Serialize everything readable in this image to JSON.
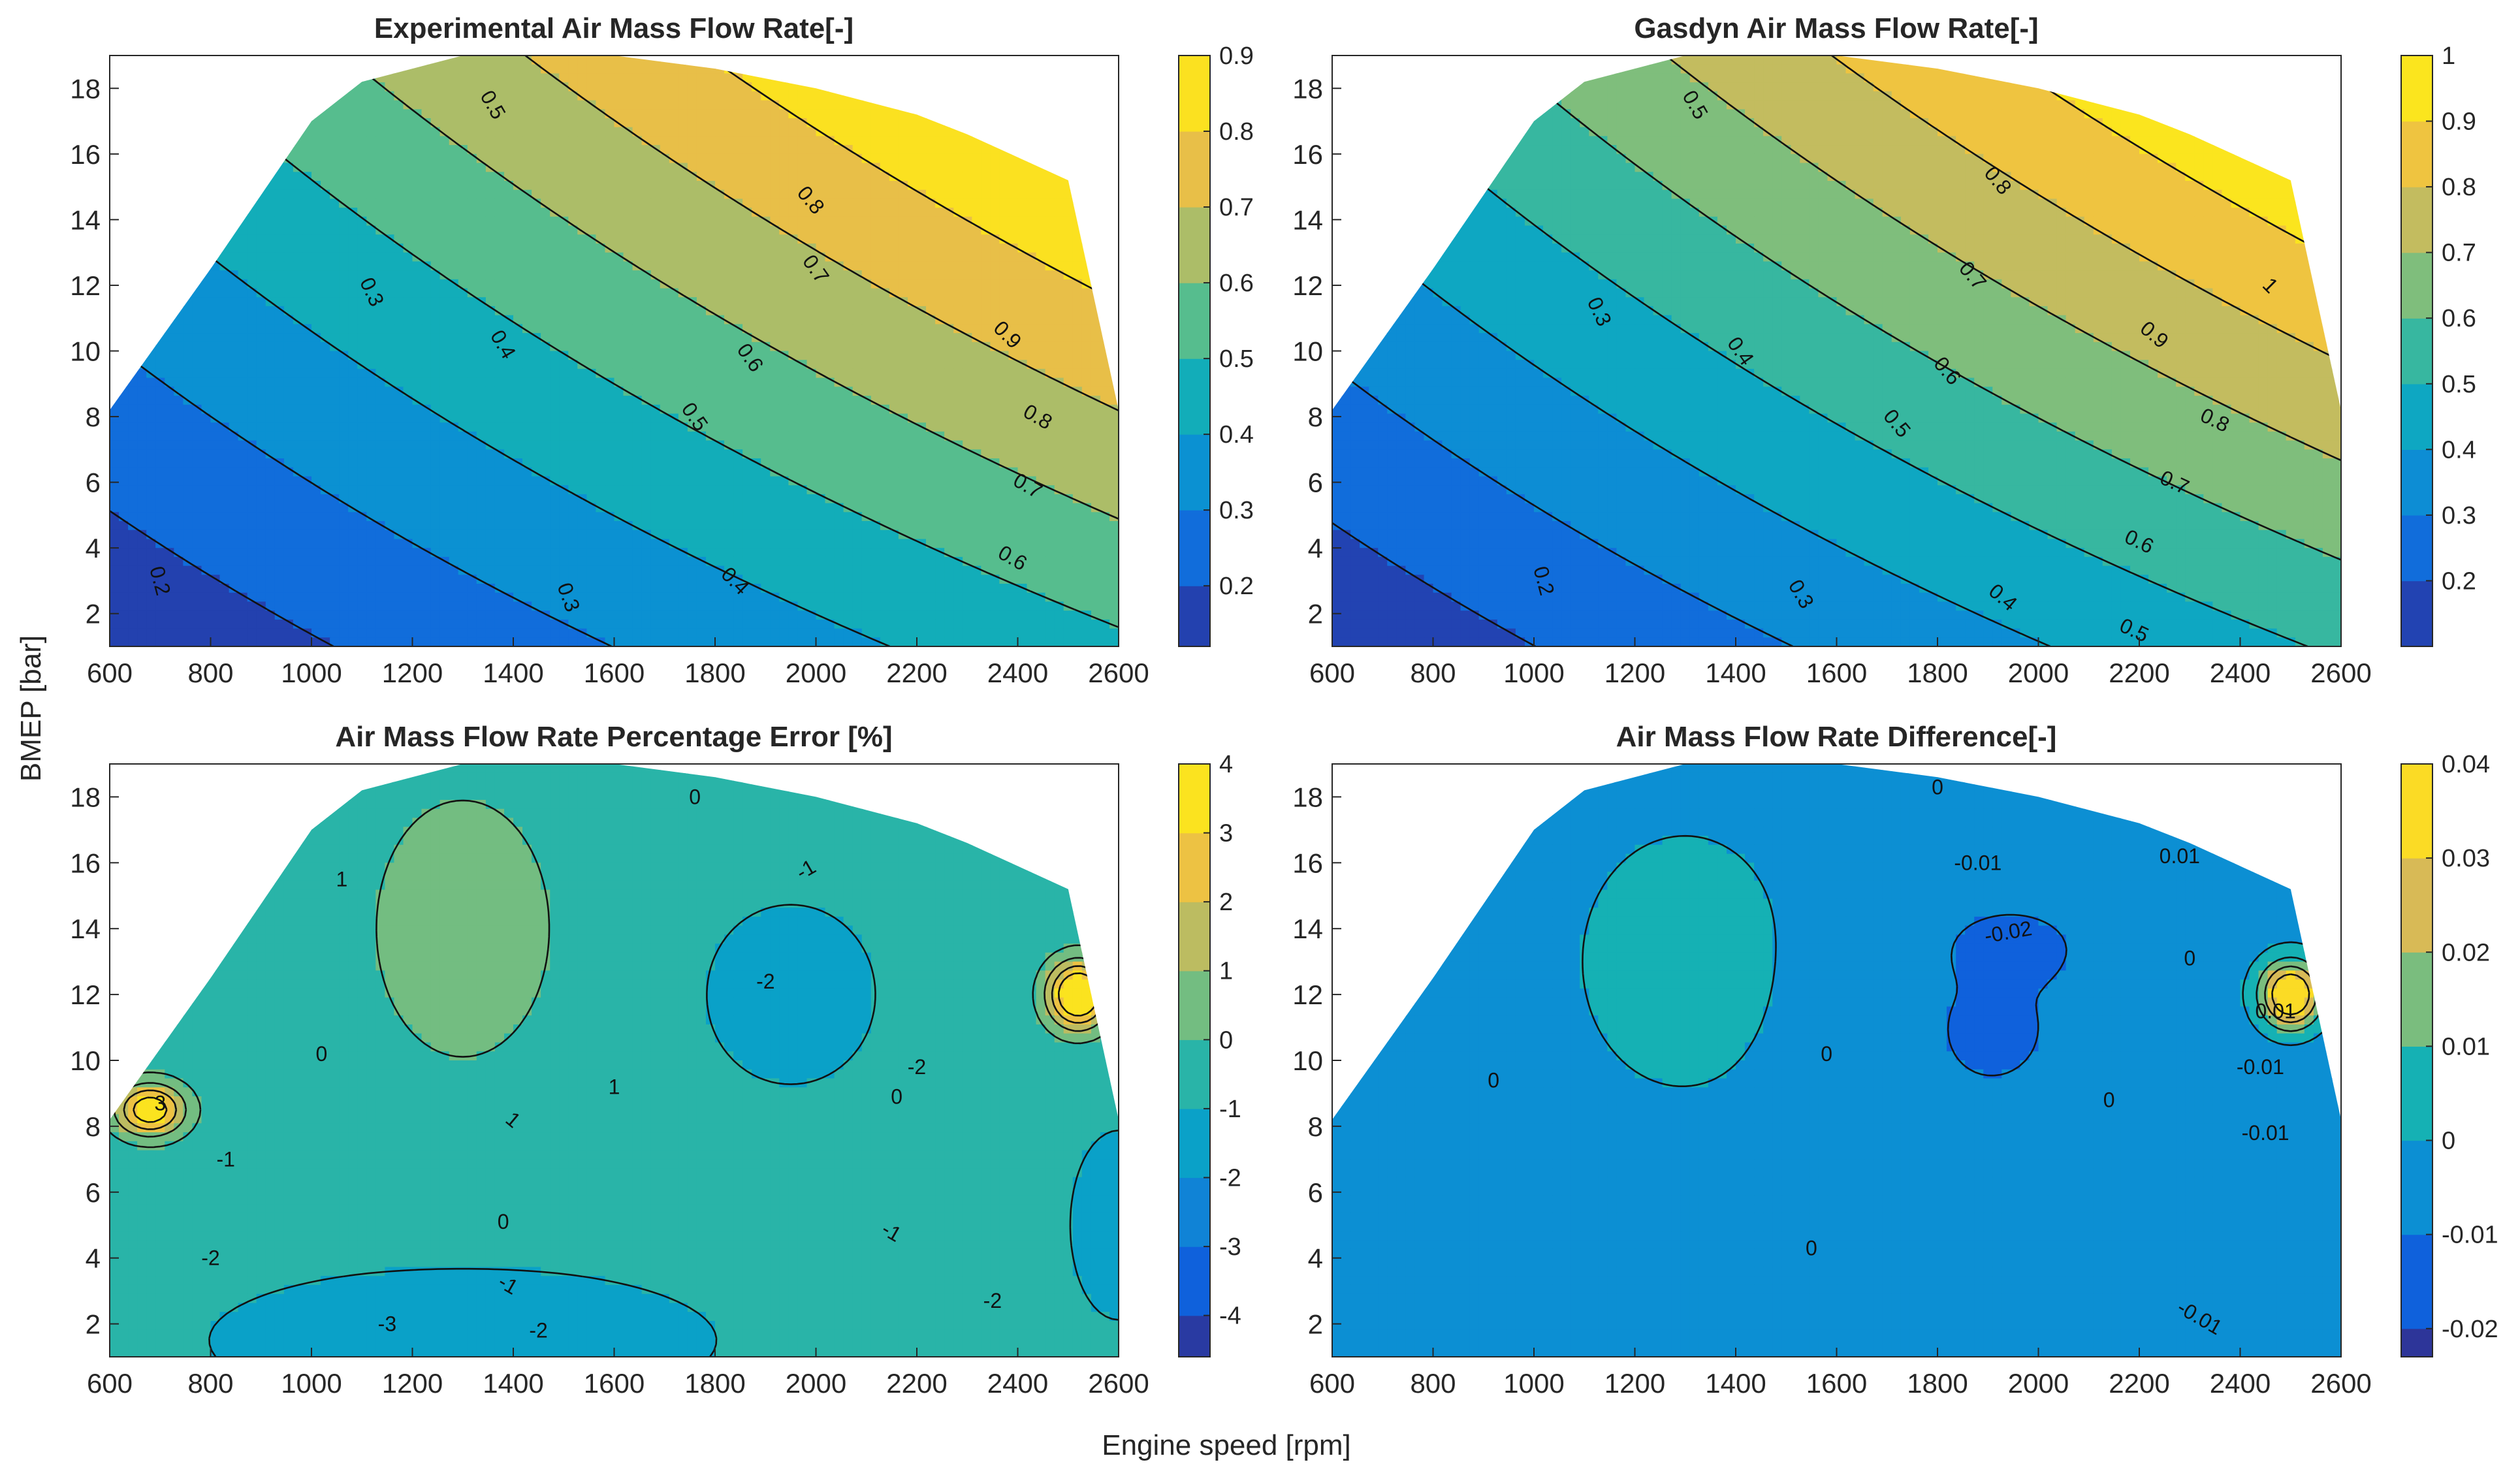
{
  "figure": {
    "shared_xlabel": "Engine speed [rpm]",
    "shared_ylabel": "BMEP [bar]"
  },
  "chart_data": [
    {
      "type": "contour",
      "title": "Experimental Air Mass Flow Rate[-]",
      "xlabel": "Engine speed [rpm]",
      "ylabel": "BMEP [bar]",
      "xlim": [
        600,
        2600
      ],
      "ylim": [
        1,
        19
      ],
      "xticks": [
        600,
        800,
        1000,
        1200,
        1400,
        1600,
        1800,
        2000,
        2200,
        2400,
        2600
      ],
      "yticks": [
        2,
        4,
        6,
        8,
        10,
        12,
        14,
        16,
        18
      ],
      "boundary": [
        [
          600,
          8.2
        ],
        [
          800,
          12.5
        ],
        [
          1000,
          17.0
        ],
        [
          1100,
          18.2
        ],
        [
          1300,
          19.0
        ],
        [
          1600,
          19.0
        ],
        [
          1800,
          18.6
        ],
        [
          2000,
          18.0
        ],
        [
          2200,
          17.2
        ],
        [
          2300,
          16.6
        ],
        [
          2500,
          15.2
        ],
        [
          2520,
          13.8
        ],
        [
          2600,
          8.2
        ],
        [
          2600,
          1
        ],
        [
          600,
          1
        ]
      ],
      "field": {
        "base": 0.1,
        "a": 0.000176,
        "b": 0.0195,
        "c": 5.4e-06
      },
      "colorbar": {
        "min": 0.12,
        "max": 0.9,
        "ticks": [
          0.2,
          0.3,
          0.4,
          0.5,
          0.6,
          0.7,
          0.8,
          0.9
        ]
      },
      "levels": [
        0.2,
        0.3,
        0.4,
        0.5,
        0.6,
        0.7,
        0.8,
        0.9
      ],
      "contour_labels": [
        {
          "text": "0.2",
          "x": 700,
          "y": 3.0,
          "rot": 75
        },
        {
          "text": "0.3",
          "x": 1120,
          "y": 11.8,
          "rot": 65
        },
        {
          "text": "0.3",
          "x": 1510,
          "y": 2.5,
          "rot": 70
        },
        {
          "text": "0.4",
          "x": 1380,
          "y": 10.2,
          "rot": 60
        },
        {
          "text": "0.4",
          "x": 1840,
          "y": 3.0,
          "rot": 45
        },
        {
          "text": "0.5",
          "x": 1360,
          "y": 17.5,
          "rot": 60
        },
        {
          "text": "0.5",
          "x": 1760,
          "y": 8.0,
          "rot": 55
        },
        {
          "text": "0.6",
          "x": 1870,
          "y": 9.8,
          "rot": 55
        },
        {
          "text": "0.6",
          "x": 2390,
          "y": 3.7,
          "rot": 30
        },
        {
          "text": "0.7",
          "x": 2000,
          "y": 12.5,
          "rot": 55
        },
        {
          "text": "0.7",
          "x": 2420,
          "y": 5.9,
          "rot": 30
        },
        {
          "text": "0.8",
          "x": 1990,
          "y": 14.6,
          "rot": 50
        },
        {
          "text": "0.8",
          "x": 2440,
          "y": 8.0,
          "rot": 30
        },
        {
          "text": "0.9",
          "x": 2380,
          "y": 10.5,
          "rot": 45
        }
      ]
    },
    {
      "type": "contour",
      "title": "Gasdyn Air Mass Flow Rate[-]",
      "xlabel": "Engine speed [rpm]",
      "ylabel": "BMEP [bar]",
      "xlim": [
        600,
        2600
      ],
      "ylim": [
        1,
        19
      ],
      "xticks": [
        600,
        800,
        1000,
        1200,
        1400,
        1600,
        1800,
        2000,
        2200,
        2400,
        2600
      ],
      "yticks": [
        2,
        4,
        6,
        8,
        10,
        12,
        14,
        16,
        18
      ],
      "boundary": [
        [
          600,
          8.2
        ],
        [
          800,
          12.5
        ],
        [
          1000,
          17.0
        ],
        [
          1100,
          18.2
        ],
        [
          1300,
          19.0
        ],
        [
          1600,
          19.0
        ],
        [
          1800,
          18.6
        ],
        [
          2000,
          18.0
        ],
        [
          2200,
          17.2
        ],
        [
          2300,
          16.6
        ],
        [
          2500,
          15.2
        ],
        [
          2520,
          13.8
        ],
        [
          2600,
          8.2
        ],
        [
          2600,
          1
        ],
        [
          600,
          1
        ]
      ],
      "field": {
        "base": 0.1,
        "a": 0.00019,
        "b": 0.021,
        "c": 6e-06
      },
      "colorbar": {
        "min": 0.1,
        "max": 1.0,
        "ticks": [
          0.2,
          0.3,
          0.4,
          0.5,
          0.6,
          0.7,
          0.8,
          0.9,
          1
        ]
      },
      "levels": [
        0.2,
        0.3,
        0.4,
        0.5,
        0.6,
        0.7,
        0.8,
        0.9,
        1.0
      ],
      "contour_labels": [
        {
          "text": "0.2",
          "x": 1020,
          "y": 3.0,
          "rot": 75
        },
        {
          "text": "0.3",
          "x": 1130,
          "y": 11.2,
          "rot": 65
        },
        {
          "text": "0.3",
          "x": 1530,
          "y": 2.6,
          "rot": 60
        },
        {
          "text": "0.4",
          "x": 1410,
          "y": 10.0,
          "rot": 55
        },
        {
          "text": "0.4",
          "x": 1930,
          "y": 2.5,
          "rot": 40
        },
        {
          "text": "0.5",
          "x": 1320,
          "y": 17.5,
          "rot": 60
        },
        {
          "text": "0.5",
          "x": 1720,
          "y": 7.8,
          "rot": 50
        },
        {
          "text": "0.5",
          "x": 2190,
          "y": 1.5,
          "rot": 25
        },
        {
          "text": "0.6",
          "x": 1820,
          "y": 9.4,
          "rot": 50
        },
        {
          "text": "0.6",
          "x": 2200,
          "y": 4.2,
          "rot": 25
        },
        {
          "text": "0.7",
          "x": 1870,
          "y": 12.3,
          "rot": 50
        },
        {
          "text": "0.7",
          "x": 2270,
          "y": 6.0,
          "rot": 25
        },
        {
          "text": "0.8",
          "x": 1920,
          "y": 15.2,
          "rot": 50
        },
        {
          "text": "0.8",
          "x": 2350,
          "y": 7.9,
          "rot": 25
        },
        {
          "text": "0.9",
          "x": 2230,
          "y": 10.5,
          "rot": 40
        },
        {
          "text": "1",
          "x": 2460,
          "y": 12.0,
          "rot": 45
        }
      ]
    },
    {
      "type": "contour",
      "title": "Air Mass Flow Rate Percentage Error [%]",
      "xlabel": "Engine speed [rpm]",
      "ylabel": "BMEP [bar]",
      "xlim": [
        600,
        2600
      ],
      "ylim": [
        1,
        19
      ],
      "xticks": [
        600,
        800,
        1000,
        1200,
        1400,
        1600,
        1800,
        2000,
        2200,
        2400,
        2600
      ],
      "yticks": [
        2,
        4,
        6,
        8,
        10,
        12,
        14,
        16,
        18
      ],
      "boundary": [
        [
          600,
          8.2
        ],
        [
          800,
          12.5
        ],
        [
          1000,
          17.0
        ],
        [
          1100,
          18.2
        ],
        [
          1300,
          19.0
        ],
        [
          1600,
          19.0
        ],
        [
          1800,
          18.6
        ],
        [
          2000,
          18.0
        ],
        [
          2200,
          17.2
        ],
        [
          2300,
          16.6
        ],
        [
          2500,
          15.2
        ],
        [
          2520,
          13.8
        ],
        [
          2600,
          8.2
        ],
        [
          2600,
          1
        ],
        [
          600,
          1
        ]
      ],
      "colorbar": {
        "min": -4.6,
        "max": 4.0,
        "ticks": [
          -4,
          -3,
          -2,
          -1,
          0,
          1,
          2,
          3,
          4
        ]
      },
      "levels": [
        -4,
        -3,
        -2,
        -1,
        0,
        1,
        2,
        3
      ],
      "bumps": [
        {
          "x": 1300,
          "y": 14,
          "sx": 220,
          "sy": 5,
          "a": 1.1
        },
        {
          "x": 1950,
          "y": 12,
          "sx": 160,
          "sy": 2.6,
          "a": -1.2
        },
        {
          "x": 1300,
          "y": 1.5,
          "sx": 500,
          "sy": 2.2,
          "a": -1.1
        },
        {
          "x": 680,
          "y": 8.5,
          "sx": 70,
          "sy": 0.8,
          "a": 4.5
        },
        {
          "x": 2520,
          "y": 12,
          "sx": 60,
          "sy": 1.0,
          "a": 5.5
        },
        {
          "x": 2600,
          "y": 5,
          "sx": 100,
          "sy": 3,
          "a": -1.0
        }
      ],
      "field": {
        "base": -0.6
      },
      "contour_labels": [
        {
          "text": "1",
          "x": 1060,
          "y": 15.5,
          "rot": 0
        },
        {
          "text": "1",
          "x": 1400,
          "y": 8.2,
          "rot": 40
        },
        {
          "text": "1",
          "x": 1600,
          "y": 9.2,
          "rot": 0
        },
        {
          "text": "-1",
          "x": 1980,
          "y": 15.8,
          "rot": -30
        },
        {
          "text": "-1",
          "x": 830,
          "y": 7.0,
          "rot": 0
        },
        {
          "text": "-1",
          "x": 1390,
          "y": 3.2,
          "rot": 30
        },
        {
          "text": "-1",
          "x": 2150,
          "y": 4.8,
          "rot": 30
        },
        {
          "text": "0",
          "x": 1020,
          "y": 10.2,
          "rot": 0
        },
        {
          "text": "0",
          "x": 1380,
          "y": 5.1,
          "rot": 0
        },
        {
          "text": "0",
          "x": 1760,
          "y": 18.0,
          "rot": 0
        },
        {
          "text": "0",
          "x": 2160,
          "y": 8.9,
          "rot": 0
        },
        {
          "text": "-2",
          "x": 1900,
          "y": 12.4,
          "rot": 0
        },
        {
          "text": "-2",
          "x": 2200,
          "y": 9.8,
          "rot": 0
        },
        {
          "text": "-2",
          "x": 800,
          "y": 4.0,
          "rot": 0
        },
        {
          "text": "-2",
          "x": 1450,
          "y": 1.8,
          "rot": 0
        },
        {
          "text": "-2",
          "x": 2350,
          "y": 2.7,
          "rot": 0
        },
        {
          "text": "-3",
          "x": 1150,
          "y": 2.0,
          "rot": 0
        },
        {
          "text": "3",
          "x": 700,
          "y": 8.7,
          "rot": 0
        }
      ]
    },
    {
      "type": "contour",
      "title": "Air Mass Flow Rate Difference[-]",
      "xlabel": "Engine speed [rpm]",
      "ylabel": "BMEP [bar]",
      "xlim": [
        600,
        2600
      ],
      "ylim": [
        1,
        19
      ],
      "xticks": [
        600,
        800,
        1000,
        1200,
        1400,
        1600,
        1800,
        2000,
        2200,
        2400,
        2600
      ],
      "yticks": [
        2,
        4,
        6,
        8,
        10,
        12,
        14,
        16,
        18
      ],
      "boundary": [
        [
          600,
          8.2
        ],
        [
          800,
          12.5
        ],
        [
          1000,
          17.0
        ],
        [
          1100,
          18.2
        ],
        [
          1300,
          19.0
        ],
        [
          1600,
          19.0
        ],
        [
          1800,
          18.6
        ],
        [
          2000,
          18.0
        ],
        [
          2200,
          17.2
        ],
        [
          2300,
          16.6
        ],
        [
          2500,
          15.2
        ],
        [
          2520,
          13.8
        ],
        [
          2600,
          8.2
        ],
        [
          2600,
          1
        ],
        [
          600,
          1
        ]
      ],
      "colorbar": {
        "min": -0.023,
        "max": 0.04,
        "ticks": [
          -0.02,
          -0.01,
          0,
          0.01,
          0.02,
          0.03,
          0.04
        ]
      },
      "levels": [
        -0.02,
        -0.01,
        0,
        0.01,
        0.02,
        0.03
      ],
      "bumps": [
        {
          "x": 1300,
          "y": 13,
          "sx": 320,
          "sy": 6,
          "a": 0.006
        },
        {
          "x": 1900,
          "y": 11,
          "sx": 260,
          "sy": 4,
          "a": -0.007
        },
        {
          "x": 2500,
          "y": 12,
          "sx": 60,
          "sy": 1.0,
          "a": 0.05
        },
        {
          "x": 2500,
          "y": 6,
          "sx": 200,
          "sy": 3.5,
          "a": -0.004
        },
        {
          "x": 1950,
          "y": 13.5,
          "sx": 100,
          "sy": 0.9,
          "a": -0.008
        }
      ],
      "field": {
        "base": -0.004
      },
      "contour_labels": [
        {
          "text": "0",
          "x": 920,
          "y": 9.4,
          "rot": 0
        },
        {
          "text": "0",
          "x": 1580,
          "y": 10.2,
          "rot": 0
        },
        {
          "text": "0",
          "x": 1800,
          "y": 18.3,
          "rot": 0
        },
        {
          "text": "0",
          "x": 1550,
          "y": 4.3,
          "rot": 0
        },
        {
          "text": "0",
          "x": 2140,
          "y": 8.8,
          "rot": 0
        },
        {
          "text": "0",
          "x": 2300,
          "y": 13.1,
          "rot": 0
        },
        {
          "text": "-0.01",
          "x": 1880,
          "y": 16.0,
          "rot": 0
        },
        {
          "text": "-0.01",
          "x": 2440,
          "y": 9.8,
          "rot": 0
        },
        {
          "text": "-0.01",
          "x": 2450,
          "y": 7.8,
          "rot": 0
        },
        {
          "text": "-0.01",
          "x": 2320,
          "y": 2.2,
          "rot": 30
        },
        {
          "text": "-0.02",
          "x": 1940,
          "y": 13.9,
          "rot": -10
        },
        {
          "text": "0.01",
          "x": 2280,
          "y": 16.2,
          "rot": 0
        },
        {
          "text": "0.01",
          "x": 2470,
          "y": 11.5,
          "rot": 0
        }
      ]
    }
  ]
}
